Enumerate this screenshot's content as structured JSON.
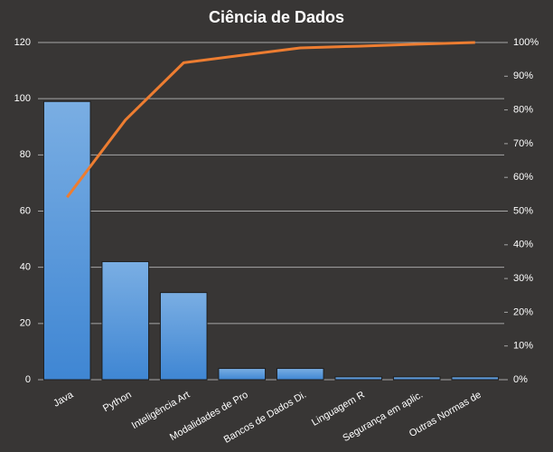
{
  "chart_data": {
    "type": "bar",
    "title": "Ciência  de Dados",
    "categories": [
      "Java",
      "Python",
      "Inteligência Art",
      "Modalidades de Pro",
      "Bancos de Dados Di.",
      "Linguagem R",
      "Segurança em aplic.",
      "Outras Normas de"
    ],
    "series": [
      {
        "type": "bar",
        "color": "#4a8fd6",
        "values": [
          99,
          42,
          31,
          4,
          4,
          1,
          1,
          1
        ]
      },
      {
        "type": "line",
        "axis": "y2",
        "color": "#ed7d31",
        "values": [
          54.1,
          77.0,
          94.0,
          96.2,
          98.4,
          98.9,
          99.5,
          100
        ]
      }
    ],
    "ylim": [
      0,
      120
    ],
    "yticks": [
      0,
      20,
      40,
      60,
      80,
      100,
      120
    ],
    "y2lim": [
      0,
      100
    ],
    "y2ticks": [
      {
        "value": 0,
        "label": "0%"
      },
      {
        "value": 10,
        "label": "10%"
      },
      {
        "value": 20,
        "label": "20%"
      },
      {
        "value": 30,
        "label": "30%"
      },
      {
        "value": 40,
        "label": "40%"
      },
      {
        "value": 50,
        "label": "50%"
      },
      {
        "value": 60,
        "label": "60%"
      },
      {
        "value": 70,
        "label": "70%"
      },
      {
        "value": 80,
        "label": "80%"
      },
      {
        "value": 90,
        "label": "90%"
      },
      {
        "value": 100,
        "label": "100%"
      }
    ],
    "grid": true
  }
}
